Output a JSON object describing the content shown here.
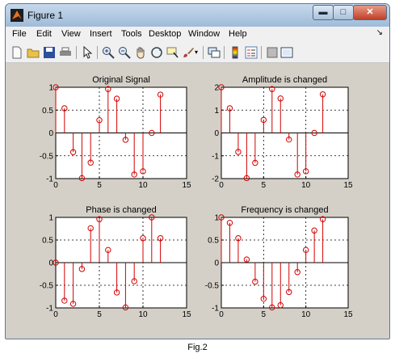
{
  "window": {
    "title": "Figure 1",
    "minimize": "▬",
    "maximize": "□",
    "close": "✕"
  },
  "menu": [
    "File",
    "Edit",
    "View",
    "Insert",
    "Tools",
    "Desktop",
    "Window",
    "Help"
  ],
  "menu_overflow": "↘",
  "toolbar": [
    {
      "name": "new-figure-icon",
      "color": "#f4f4f4"
    },
    {
      "name": "open-file-icon",
      "color": "#e8c24a"
    },
    {
      "name": "save-icon",
      "color": "#2c4f9e"
    },
    {
      "name": "print-icon",
      "color": "#707070"
    },
    {
      "name": "edit-plot-arrow-icon",
      "color": "#303030"
    },
    {
      "name": "zoom-in-icon",
      "color": "#4a78c8"
    },
    {
      "name": "zoom-out-icon",
      "color": "#4a78c8"
    },
    {
      "name": "pan-hand-icon",
      "color": "#f0d9b5"
    },
    {
      "name": "rotate-3d-icon",
      "color": "#4a78c8"
    },
    {
      "name": "data-cursor-icon",
      "color": "#c9a24a"
    },
    {
      "name": "brush-icon",
      "color": "#b04040"
    },
    {
      "name": "link-plot-icon",
      "color": "#4a78c8"
    },
    {
      "name": "colorbar-icon",
      "color": "#e0a020"
    },
    {
      "name": "legend-icon",
      "color": "#5a7ab0"
    },
    {
      "name": "hide-plot-tools-icon",
      "color": "#808080"
    },
    {
      "name": "show-plot-tools-icon",
      "color": "#5a7ab0"
    }
  ],
  "caption": "Fig.2",
  "chart_data": [
    {
      "type": "stem",
      "title": "Original Signal",
      "xlim": [
        0,
        15
      ],
      "ylim": [
        -1,
        1
      ],
      "xticks": [
        "0",
        "5",
        "10",
        "15"
      ],
      "yticks": [
        "-1",
        "-0.5",
        "0",
        "0.5",
        "1"
      ],
      "ytick_values": [
        -1,
        -0.5,
        0,
        0.5,
        1
      ],
      "grid": true,
      "x": [
        0,
        1,
        2,
        3,
        4,
        5,
        6,
        7,
        8,
        9,
        10,
        11,
        12
      ],
      "values": [
        1,
        0.54,
        -0.42,
        -0.99,
        -0.65,
        0.28,
        0.96,
        0.75,
        -0.15,
        -0.91,
        -0.84,
        0.0,
        0.84
      ],
      "color": "#d40000"
    },
    {
      "type": "stem",
      "title": "Amplitude is changed",
      "xlim": [
        0,
        15
      ],
      "ylim": [
        -2,
        2
      ],
      "xticks": [
        "0",
        "5",
        "10",
        "15"
      ],
      "yticks": [
        "-2",
        "-1",
        "0",
        "1",
        "2"
      ],
      "ytick_values": [
        -2,
        -1,
        0,
        1,
        2
      ],
      "grid": true,
      "x": [
        0,
        1,
        2,
        3,
        4,
        5,
        6,
        7,
        8,
        9,
        10,
        11,
        12
      ],
      "values": [
        2,
        1.08,
        -0.83,
        -1.98,
        -1.31,
        0.57,
        1.92,
        1.51,
        -0.29,
        -1.82,
        -1.68,
        0.0,
        1.69
      ],
      "color": "#d40000"
    },
    {
      "type": "stem",
      "title": "Phase is changed",
      "xlim": [
        0,
        15
      ],
      "ylim": [
        -1,
        1
      ],
      "xticks": [
        "0",
        "5",
        "10",
        "15"
      ],
      "yticks": [
        "-1",
        "-0.5",
        "0",
        "0.5",
        "1"
      ],
      "ytick_values": [
        -1,
        -0.5,
        0,
        0.5,
        1
      ],
      "grid": true,
      "x": [
        0,
        1,
        2,
        3,
        4,
        5,
        6,
        7,
        8,
        9,
        10,
        11,
        12
      ],
      "values": [
        0,
        -0.84,
        -0.91,
        -0.14,
        0.76,
        0.96,
        0.28,
        -0.66,
        -0.99,
        -0.41,
        0.54,
        1.0,
        0.54
      ],
      "color": "#d40000"
    },
    {
      "type": "stem",
      "title": "Frequency is changed",
      "xlim": [
        0,
        15
      ],
      "ylim": [
        -1,
        1
      ],
      "xticks": [
        "0",
        "5",
        "10",
        "15"
      ],
      "yticks": [
        "-1",
        "-0.5",
        "0",
        "0.5",
        "1"
      ],
      "ytick_values": [
        -1,
        -0.5,
        0,
        0.5,
        1
      ],
      "grid": true,
      "x": [
        0,
        1,
        2,
        3,
        4,
        5,
        6,
        7,
        8,
        9,
        10,
        11,
        12
      ],
      "values": [
        1,
        0.88,
        0.54,
        0.07,
        -0.42,
        -0.8,
        -0.99,
        -0.94,
        -0.65,
        -0.21,
        0.28,
        0.71,
        0.96
      ],
      "color": "#d40000"
    }
  ]
}
